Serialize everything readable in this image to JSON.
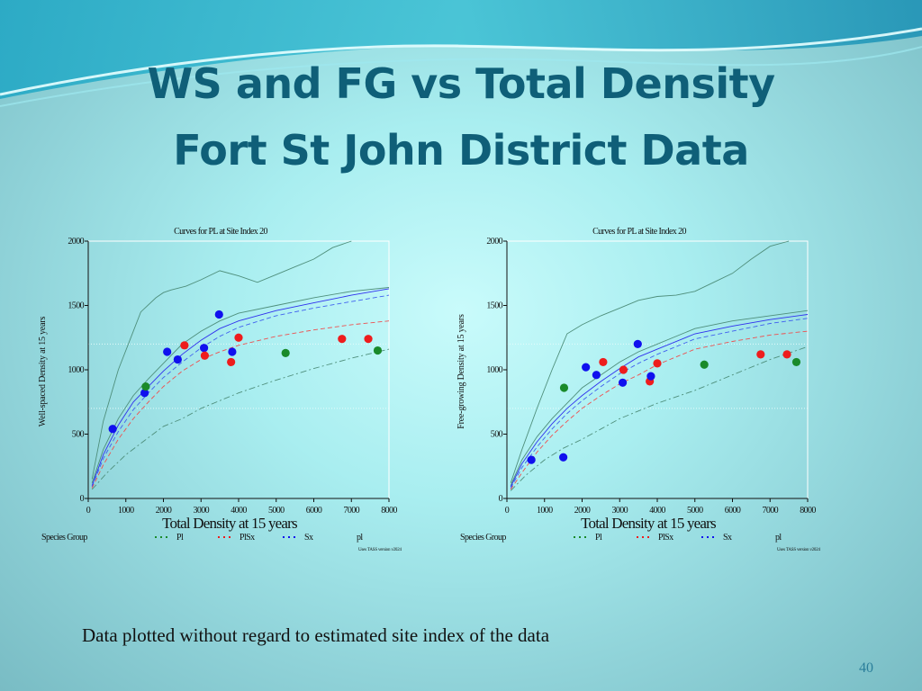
{
  "slide": {
    "title_line1": "WS and FG vs Total Density",
    "title_line2": "Fort St John District Data",
    "caption": "Data plotted without regard to estimated site index of the data",
    "page_number": "40"
  },
  "colors": {
    "title": "#0f5f78",
    "pl": "#1a8a2a",
    "plsx": "#ee1c1c",
    "sx": "#1010ee",
    "upper_band": "#4f8f7c",
    "grid_dots": "#b8c8c8"
  },
  "chart_data": [
    {
      "type": "scatter",
      "title": "Curves for PL at Site Index 20",
      "xlabel": "Total Density at 15 years",
      "ylabel": "Well-spaced Density at 15 years",
      "xlim": [
        0,
        8000
      ],
      "ylim": [
        0,
        2000
      ],
      "x_ticks": [
        "0",
        "1000",
        "2000",
        "3000",
        "4000",
        "5000",
        "6000",
        "7000",
        "8000"
      ],
      "y_ticks": [
        "0",
        "500",
        "1000",
        "1500",
        "2000"
      ],
      "legend_title": "Species Group",
      "legend": [
        "Pl",
        "PlSx",
        "Sx",
        "pl"
      ],
      "footnote": "Uses TASS version v2024",
      "curves": [
        {
          "style": "solid",
          "color": "#4f8f7c",
          "x": [
            100,
            400,
            800,
            1200,
            1400,
            1800,
            2000,
            2200,
            2600,
            3000,
            3500,
            4000,
            4500,
            5000,
            5500,
            6000,
            6500,
            7000
          ],
          "y": [
            150,
            600,
            1000,
            1300,
            1450,
            1560,
            1600,
            1620,
            1650,
            1700,
            1770,
            1730,
            1680,
            1740,
            1800,
            1860,
            1950,
            2000
          ]
        },
        {
          "style": "solid",
          "color": "#4f8f7c",
          "x": [
            100,
            400,
            800,
            1200,
            1600,
            2000,
            2500,
            3000,
            3500,
            4000,
            5000,
            6000,
            7000,
            8000
          ],
          "y": [
            120,
            380,
            620,
            800,
            930,
            1050,
            1200,
            1300,
            1380,
            1440,
            1500,
            1560,
            1610,
            1640
          ]
        },
        {
          "style": "solid",
          "color": "#3030ee",
          "x": [
            100,
            400,
            800,
            1200,
            1600,
            2000,
            2500,
            3000,
            3500,
            4000,
            5000,
            6000,
            7000,
            8000
          ],
          "y": [
            100,
            340,
            570,
            750,
            870,
            990,
            1120,
            1230,
            1320,
            1380,
            1460,
            1520,
            1580,
            1630
          ]
        },
        {
          "style": "dashed",
          "color": "#4060ee",
          "x": [
            100,
            400,
            800,
            1200,
            1600,
            2000,
            2500,
            3000,
            3500,
            4000,
            5000,
            6000,
            7000,
            8000
          ],
          "y": [
            90,
            310,
            520,
            690,
            820,
            940,
            1060,
            1170,
            1260,
            1330,
            1420,
            1480,
            1530,
            1580
          ]
        },
        {
          "style": "dashed",
          "color": "#ee5050",
          "x": [
            100,
            400,
            800,
            1200,
            1600,
            2000,
            2500,
            3000,
            3500,
            4000,
            5000,
            6000,
            7000,
            8000
          ],
          "y": [
            80,
            260,
            460,
            620,
            750,
            870,
            990,
            1080,
            1140,
            1190,
            1260,
            1310,
            1350,
            1380
          ]
        },
        {
          "style": "dashdot",
          "color": "#4f8f7c",
          "x": [
            100,
            500,
            1000,
            1500,
            2000,
            2500,
            3000,
            4000,
            5000,
            6000,
            7000,
            8000
          ],
          "y": [
            70,
            200,
            340,
            450,
            560,
            620,
            700,
            820,
            920,
            1010,
            1090,
            1160
          ]
        }
      ],
      "points": [
        {
          "group": "Sx",
          "x": 650,
          "y": 540
        },
        {
          "group": "Sx",
          "x": 1500,
          "y": 820
        },
        {
          "group": "Pl",
          "x": 1530,
          "y": 870
        },
        {
          "group": "Sx",
          "x": 2100,
          "y": 1140
        },
        {
          "group": "Sx",
          "x": 2380,
          "y": 1080
        },
        {
          "group": "PlSx",
          "x": 2560,
          "y": 1190
        },
        {
          "group": "Sx",
          "x": 3080,
          "y": 1170
        },
        {
          "group": "PlSx",
          "x": 3100,
          "y": 1110
        },
        {
          "group": "Sx",
          "x": 3480,
          "y": 1430
        },
        {
          "group": "PlSx",
          "x": 3800,
          "y": 1060
        },
        {
          "group": "Sx",
          "x": 3830,
          "y": 1140
        },
        {
          "group": "PlSx",
          "x": 4000,
          "y": 1250
        },
        {
          "group": "Pl",
          "x": 5250,
          "y": 1130
        },
        {
          "group": "PlSx",
          "x": 6750,
          "y": 1240
        },
        {
          "group": "PlSx",
          "x": 7450,
          "y": 1240
        },
        {
          "group": "Pl",
          "x": 7700,
          "y": 1150
        }
      ],
      "dotted_hlines": [
        700,
        1200
      ]
    },
    {
      "type": "scatter",
      "title": "Curves for PL at Site Index 20",
      "xlabel": "Total Density at 15 years",
      "ylabel": "Free-growing Density at 15 years",
      "xlim": [
        0,
        8000
      ],
      "ylim": [
        0,
        2000
      ],
      "x_ticks": [
        "0",
        "1000",
        "2000",
        "3000",
        "4000",
        "5000",
        "6000",
        "7000",
        "8000"
      ],
      "y_ticks": [
        "0",
        "500",
        "1000",
        "1500",
        "2000"
      ],
      "legend_title": "Species Group",
      "legend": [
        "Pl",
        "PlSx",
        "Sx",
        "pl"
      ],
      "footnote": "Uses TASS version v2024",
      "curves": [
        {
          "style": "solid",
          "color": "#4f8f7c",
          "x": [
            100,
            400,
            800,
            1200,
            1600,
            2000,
            2500,
            3000,
            3500,
            4000,
            4500,
            5000,
            5500,
            6000,
            6500,
            7000,
            7500
          ],
          "y": [
            120,
            380,
            700,
            1000,
            1280,
            1350,
            1420,
            1480,
            1540,
            1570,
            1580,
            1610,
            1680,
            1750,
            1860,
            1960,
            2000
          ]
        },
        {
          "style": "solid",
          "color": "#4f8f7c",
          "x": [
            100,
            400,
            800,
            1200,
            1600,
            2000,
            2500,
            3000,
            3500,
            4000,
            5000,
            6000,
            7000,
            8000
          ],
          "y": [
            100,
            300,
            480,
            620,
            740,
            860,
            960,
            1060,
            1140,
            1200,
            1320,
            1380,
            1420,
            1460
          ]
        },
        {
          "style": "solid",
          "color": "#3030ee",
          "x": [
            100,
            400,
            800,
            1200,
            1600,
            2000,
            2500,
            3000,
            3500,
            4000,
            5000,
            6000,
            7000,
            8000
          ],
          "y": [
            90,
            270,
            440,
            580,
            700,
            800,
            910,
            1010,
            1100,
            1160,
            1280,
            1340,
            1390,
            1430
          ]
        },
        {
          "style": "dashed",
          "color": "#4060ee",
          "x": [
            100,
            400,
            800,
            1200,
            1600,
            2000,
            2500,
            3000,
            3500,
            4000,
            5000,
            6000,
            7000,
            8000
          ],
          "y": [
            80,
            240,
            400,
            540,
            660,
            760,
            870,
            970,
            1050,
            1120,
            1240,
            1300,
            1360,
            1400
          ]
        },
        {
          "style": "dashed",
          "color": "#ee5050",
          "x": [
            100,
            400,
            800,
            1200,
            1600,
            2000,
            2500,
            3000,
            3500,
            4000,
            5000,
            6000,
            7000,
            8000
          ],
          "y": [
            70,
            200,
            360,
            490,
            600,
            700,
            800,
            890,
            960,
            1040,
            1160,
            1220,
            1270,
            1300
          ]
        },
        {
          "style": "dashdot",
          "color": "#4f8f7c",
          "x": [
            100,
            500,
            1000,
            1500,
            2000,
            2500,
            3000,
            4000,
            5000,
            6000,
            7000,
            8000
          ],
          "y": [
            60,
            180,
            300,
            390,
            460,
            540,
            620,
            740,
            840,
            960,
            1080,
            1180
          ]
        }
      ],
      "points": [
        {
          "group": "Sx",
          "x": 650,
          "y": 300
        },
        {
          "group": "Sx",
          "x": 1500,
          "y": 320
        },
        {
          "group": "Pl",
          "x": 1520,
          "y": 860
        },
        {
          "group": "Sx",
          "x": 2100,
          "y": 1020
        },
        {
          "group": "Sx",
          "x": 2380,
          "y": 960
        },
        {
          "group": "PlSx",
          "x": 2560,
          "y": 1060
        },
        {
          "group": "Sx",
          "x": 3080,
          "y": 900
        },
        {
          "group": "PlSx",
          "x": 3100,
          "y": 1000
        },
        {
          "group": "Sx",
          "x": 3480,
          "y": 1200
        },
        {
          "group": "PlSx",
          "x": 3800,
          "y": 910
        },
        {
          "group": "Sx",
          "x": 3830,
          "y": 950
        },
        {
          "group": "PlSx",
          "x": 4000,
          "y": 1050
        },
        {
          "group": "Pl",
          "x": 5250,
          "y": 1040
        },
        {
          "group": "PlSx",
          "x": 6750,
          "y": 1120
        },
        {
          "group": "PlSx",
          "x": 7450,
          "y": 1120
        },
        {
          "group": "Pl",
          "x": 7700,
          "y": 1060
        }
      ],
      "dotted_hlines": [
        700,
        1200
      ]
    }
  ]
}
